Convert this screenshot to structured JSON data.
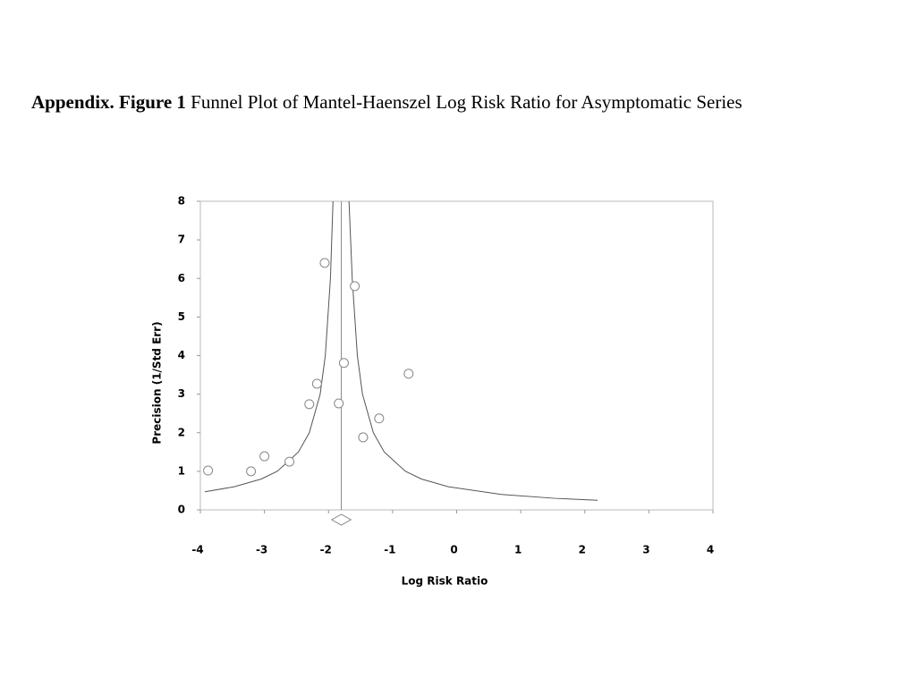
{
  "chart_data": {
    "type": "scatter",
    "title_label": "Appendix. Figure 1",
    "title": "Funnel Plot of Mantel-Haenszel Log Risk Ratio for Asymptomatic Series",
    "xlabel": "Log Risk Ratio",
    "ylabel": "Precision (1/Std Err)",
    "xlim": [
      -4,
      4
    ],
    "xticks": [
      -4,
      -3,
      -2,
      -1,
      0,
      1,
      2,
      3,
      4
    ],
    "ylim": [
      0,
      8
    ],
    "yticks": [
      0,
      1,
      2,
      3,
      4,
      5,
      6,
      7,
      8
    ],
    "series": [
      {
        "color": "#888888",
        "x": [
          -3.88,
          -3.21,
          -3.0,
          -2.61,
          -2.3,
          -2.18,
          -2.06,
          -1.84,
          -1.76,
          -1.59,
          -1.46,
          -1.21,
          -0.75
        ],
        "y": [
          1.02,
          1.0,
          1.39,
          1.25,
          2.74,
          3.27,
          6.4,
          2.76,
          3.81,
          5.8,
          1.88,
          2.37,
          3.53
        ]
      }
    ],
    "funnel": [
      {
        "x": [
          -3.93,
          -3.47,
          -3.05,
          -2.8,
          -2.47,
          -2.3,
          -2.13,
          -2.05,
          -1.97,
          -1.93
        ],
        "y": [
          0.47,
          0.6,
          0.8,
          1,
          1.5,
          2,
          3,
          4,
          6,
          8
        ]
      },
      {
        "x": [
          -1.68,
          -1.63,
          -1.55,
          -1.47,
          -1.3,
          -1.13,
          -0.8,
          -0.55,
          -0.13,
          0.7,
          1.53,
          2.2
        ],
        "y": [
          8,
          6,
          4,
          3,
          2,
          1.5,
          1,
          0.8,
          0.6,
          0.4,
          0.3,
          0.25
        ]
      }
    ],
    "pooled": {
      "estimate": -1.8,
      "ci": [
        -1.95,
        -1.65
      ]
    }
  }
}
